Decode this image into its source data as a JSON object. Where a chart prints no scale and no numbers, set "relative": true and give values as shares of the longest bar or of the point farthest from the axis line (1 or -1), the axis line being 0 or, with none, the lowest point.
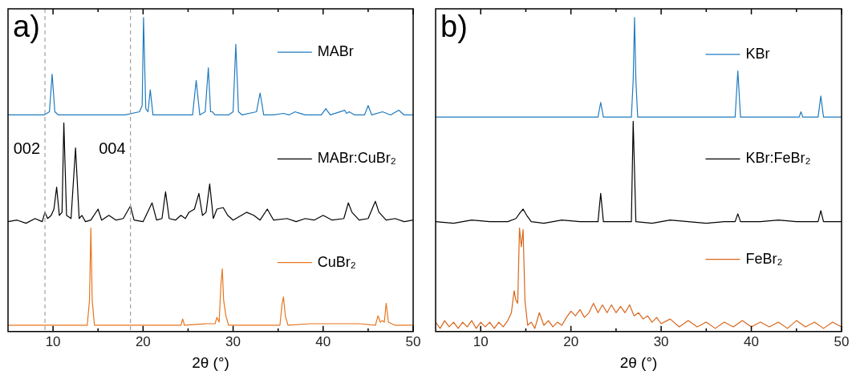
{
  "chart_data": [
    {
      "type": "line",
      "relative": true,
      "xlabel": "2θ (°)",
      "annotations": [
        "a)",
        {
          "text": "002",
          "x": 9.1,
          "y": 0.58
        },
        {
          "text": "004",
          "x": 18.6,
          "y": 0.58
        }
      ],
      "tick_labels": "x",
      "legend": "right",
      "xlim": [
        5,
        50
      ],
      "xticks": [
        10,
        {
          "value": 15,
          "label": null
        },
        20,
        {
          "value": 25,
          "label": null
        },
        30,
        {
          "value": 35,
          "label": null
        },
        40,
        {
          "value": 45,
          "label": null
        },
        50
      ],
      "ref_lines": [
        {
          "axis": "x",
          "value": 9.1,
          "color": "#a0a0a0",
          "line_style": "dashed"
        },
        {
          "axis": "x",
          "value": 18.6,
          "color": "#a0a0a0",
          "line_style": "dashed"
        }
      ],
      "series": [
        {
          "name": "MABr",
          "color": "#1f7bbf",
          "x": [
            5,
            7,
            9,
            9.6,
            9.9,
            10.2,
            10.6,
            12,
            15,
            18,
            19.6,
            19.9,
            20.05,
            20.3,
            20.55,
            20.8,
            21.1,
            22,
            24,
            25.5,
            25.9,
            26.3,
            26.9,
            27.25,
            27.5,
            27.7,
            28,
            29.5,
            30.0,
            30.3,
            30.6,
            31,
            32.6,
            33.0,
            33.4,
            34.5,
            35.6,
            36.2,
            36.9,
            37.2,
            38,
            39.8,
            40.3,
            40.8,
            42.4,
            42.6,
            42.9,
            43.5,
            44.6,
            45.0,
            45.4,
            46.6,
            47.5,
            48.4,
            49,
            50
          ],
          "values": [
            0.69,
            0.69,
            0.69,
            0.7,
            0.82,
            0.7,
            0.69,
            0.69,
            0.69,
            0.69,
            0.7,
            0.72,
            1.0,
            0.71,
            0.7,
            0.77,
            0.69,
            0.69,
            0.69,
            0.69,
            0.8,
            0.69,
            0.7,
            0.84,
            0.7,
            0.7,
            0.69,
            0.69,
            0.7,
            0.915,
            0.7,
            0.69,
            0.7,
            0.76,
            0.69,
            0.69,
            0.695,
            0.69,
            0.7,
            0.697,
            0.69,
            0.69,
            0.71,
            0.69,
            0.705,
            0.695,
            0.7,
            0.69,
            0.69,
            0.72,
            0.69,
            0.7,
            0.69,
            0.705,
            0.69,
            0.69
          ]
        },
        {
          "name": "MABr:CuBr₂",
          "color": "#000000",
          "x": [
            5,
            6,
            7,
            8,
            8.8,
            9.1,
            9.4,
            9.8,
            10.1,
            10.4,
            10.7,
            11.0,
            11.2,
            11.5,
            12.0,
            12.5,
            12.9,
            13.2,
            13.6,
            14.2,
            15.0,
            15.4,
            16.2,
            17,
            17.8,
            18.6,
            19,
            20,
            21,
            21.5,
            22.1,
            22.5,
            22.9,
            23.6,
            24.2,
            24.7,
            25.1,
            25.7,
            26.2,
            26.6,
            27.0,
            27.4,
            27.8,
            28.2,
            28.9,
            29.4,
            30,
            31.5,
            32.3,
            33.0,
            33.8,
            34.5,
            36,
            37,
            38,
            39,
            40,
            41,
            42.3,
            42.8,
            43.2,
            44,
            45,
            45.8,
            46.2,
            47,
            48,
            49,
            50
          ],
          "values": [
            0.35,
            0.355,
            0.345,
            0.36,
            0.35,
            0.38,
            0.36,
            0.37,
            0.39,
            0.46,
            0.37,
            0.38,
            0.665,
            0.37,
            0.36,
            0.585,
            0.36,
            0.37,
            0.35,
            0.355,
            0.39,
            0.355,
            0.37,
            0.355,
            0.36,
            0.4,
            0.355,
            0.35,
            0.41,
            0.355,
            0.36,
            0.445,
            0.36,
            0.355,
            0.37,
            0.36,
            0.38,
            0.39,
            0.44,
            0.37,
            0.38,
            0.47,
            0.36,
            0.39,
            0.395,
            0.37,
            0.355,
            0.38,
            0.37,
            0.355,
            0.39,
            0.355,
            0.36,
            0.35,
            0.36,
            0.355,
            0.37,
            0.355,
            0.36,
            0.41,
            0.38,
            0.355,
            0.36,
            0.415,
            0.38,
            0.355,
            0.36,
            0.35,
            0.355
          ]
        },
        {
          "name": "CuBr₂",
          "color": "#e8751e",
          "x": [
            5,
            10,
            13.8,
            14.05,
            14.2,
            14.35,
            14.6,
            20,
            24.2,
            24.4,
            24.6,
            27,
            28.0,
            28.2,
            28.45,
            28.65,
            28.8,
            28.95,
            29.2,
            29.5,
            35.2,
            35.45,
            35.6,
            35.8,
            36.1,
            38.6,
            44,
            45.8,
            46.1,
            46.35,
            46.6,
            46.8,
            47.0,
            47.25,
            48,
            50
          ],
          "values": [
            0.02,
            0.02,
            0.02,
            0.1,
            0.33,
            0.1,
            0.02,
            0.02,
            0.02,
            0.04,
            0.02,
            0.025,
            0.025,
            0.045,
            0.03,
            0.15,
            0.2,
            0.1,
            0.05,
            0.02,
            0.02,
            0.09,
            0.11,
            0.05,
            0.02,
            0.025,
            0.025,
            0.02,
            0.05,
            0.03,
            0.035,
            0.03,
            0.09,
            0.03,
            0.02,
            0.02
          ]
        }
      ]
    },
    {
      "type": "line",
      "relative": true,
      "xlabel": "2θ (°)",
      "annotations": [
        "b)"
      ],
      "tick_labels": "x",
      "legend": "right",
      "xlim": [
        5,
        50
      ],
      "xticks": [
        10,
        {
          "value": 15,
          "label": null
        },
        20,
        {
          "value": 25,
          "label": null
        },
        30,
        {
          "value": 35,
          "label": null
        },
        40,
        {
          "value": 45,
          "label": null
        },
        50
      ],
      "series": [
        {
          "name": "KBr",
          "color": "#1f7bbf",
          "x": [
            5,
            15,
            23.0,
            23.3,
            23.6,
            26.7,
            26.9,
            27.05,
            27.2,
            27.4,
            38.2,
            38.5,
            38.8,
            45.3,
            45.5,
            45.7,
            47.4,
            47.7,
            48.0,
            50
          ],
          "values": [
            0.683,
            0.683,
            0.683,
            0.73,
            0.683,
            0.683,
            0.8,
            1.0,
            0.8,
            0.683,
            0.683,
            0.83,
            0.683,
            0.683,
            0.7,
            0.683,
            0.683,
            0.75,
            0.683,
            0.683
          ]
        },
        {
          "name": "KBr:FeBr₂",
          "color": "#000000",
          "x": [
            5,
            7,
            9,
            11,
            13,
            13.9,
            14.4,
            14.7,
            15.1,
            15.6,
            17,
            19,
            21,
            23.0,
            23.3,
            23.6,
            25,
            26.7,
            26.9,
            27.2,
            29,
            31,
            33,
            35,
            37,
            38.2,
            38.5,
            38.8,
            41,
            43,
            45,
            47.4,
            47.7,
            48,
            50
          ],
          "values": [
            0.35,
            0.345,
            0.355,
            0.35,
            0.35,
            0.36,
            0.38,
            0.39,
            0.37,
            0.35,
            0.345,
            0.355,
            0.35,
            0.35,
            0.44,
            0.35,
            0.35,
            0.35,
            0.67,
            0.35,
            0.345,
            0.355,
            0.35,
            0.345,
            0.35,
            0.35,
            0.375,
            0.35,
            0.35,
            0.355,
            0.35,
            0.35,
            0.385,
            0.35,
            0.35
          ]
        },
        {
          "name": "FeBr₂",
          "color": "#d9661a",
          "x": [
            5,
            5.5,
            6,
            6.5,
            7,
            7.5,
            8,
            8.5,
            9,
            9.5,
            10,
            10.5,
            11,
            11.5,
            12,
            12.5,
            13,
            13.4,
            13.7,
            13.9,
            14.1,
            14.3,
            14.5,
            14.7,
            14.9,
            15.2,
            15.6,
            16,
            16.5,
            17,
            17.5,
            18,
            18.5,
            19,
            19.5,
            20,
            20.5,
            21,
            21.5,
            22,
            22.5,
            23,
            23.5,
            24,
            24.5,
            25,
            25.5,
            26,
            26.5,
            27,
            27.5,
            28,
            28.5,
            29,
            29.5,
            30,
            31,
            32,
            33,
            34,
            35,
            36,
            37,
            38,
            39,
            40,
            41,
            42,
            43,
            44,
            45,
            46,
            47,
            48,
            49,
            50
          ],
          "values": [
            0.03,
            0.01,
            0.035,
            0.015,
            0.03,
            0.01,
            0.03,
            0.015,
            0.035,
            0.01,
            0.03,
            0.015,
            0.03,
            0.01,
            0.03,
            0.015,
            0.035,
            0.06,
            0.13,
            0.1,
            0.09,
            0.33,
            0.27,
            0.325,
            0.1,
            0.02,
            0.03,
            0.01,
            0.06,
            0.02,
            0.035,
            0.015,
            0.03,
            0.02,
            0.045,
            0.065,
            0.05,
            0.07,
            0.045,
            0.06,
            0.09,
            0.06,
            0.085,
            0.06,
            0.085,
            0.06,
            0.08,
            0.06,
            0.085,
            0.05,
            0.06,
            0.04,
            0.05,
            0.03,
            0.045,
            0.025,
            0.04,
            0.015,
            0.035,
            0.015,
            0.03,
            0.01,
            0.03,
            0.015,
            0.035,
            0.015,
            0.03,
            0.015,
            0.03,
            0.01,
            0.035,
            0.015,
            0.03,
            0.01,
            0.03,
            0.015
          ]
        }
      ]
    }
  ]
}
